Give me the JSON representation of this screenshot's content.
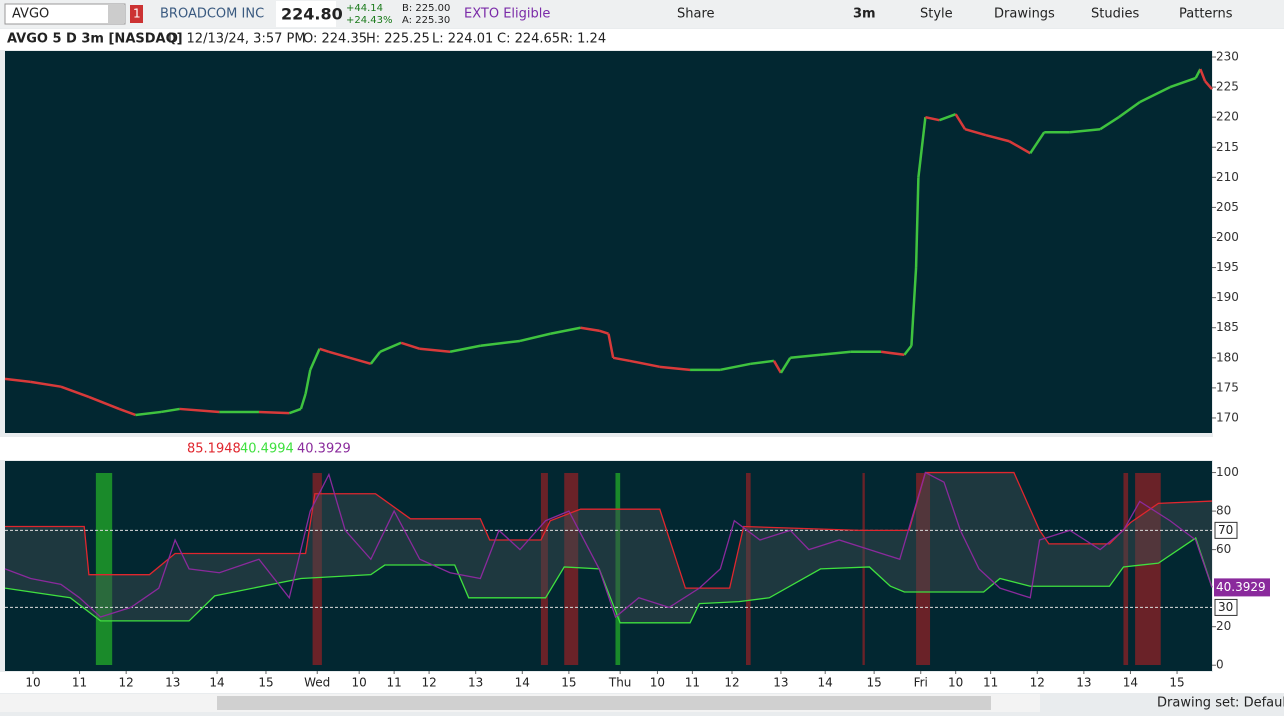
{
  "toolbar": {
    "symbol": "AVGO",
    "link": "1",
    "company": "BROADCOM INC",
    "last": "224.80",
    "change": "+44.14",
    "change_pct": "+24.43%",
    "bid": "B: 225.00",
    "ask": "A: 225.30",
    "exto": "EXTO Eligible",
    "buttons": [
      "Share",
      "3m",
      "Style",
      "Drawings",
      "Studies",
      "Patterns"
    ]
  },
  "chart_header": [
    "AVGO 5 D 3m [NASDAQ]",
    "D: 12/13/24, 3:57 PM",
    "O: 224.35",
    "H: 225.25",
    "L: 224.01",
    "C: 224.65",
    "R: 1.24"
  ],
  "chart_data": [
    {
      "type": "line",
      "background": "#022731",
      "up_color": "#3fc33f",
      "down_color": "#d83a3a",
      "x": [
        0,
        11,
        24,
        36,
        49,
        56,
        67,
        75,
        92,
        109,
        122,
        127,
        129,
        131,
        135,
        139,
        148,
        157,
        161,
        170,
        178,
        191,
        204,
        221,
        234,
        247,
        255,
        259,
        261,
        268,
        281,
        294,
        307,
        320,
        330,
        333,
        337,
        350,
        363,
        376,
        386,
        389,
        391,
        392,
        395,
        401,
        408,
        412,
        421,
        431,
        440,
        446,
        457,
        470,
        478,
        487,
        500,
        511,
        513,
        515,
        518
      ],
      "values": [
        176.5,
        176,
        175.2,
        173.5,
        171.5,
        170.5,
        171,
        171.5,
        171,
        171,
        170.8,
        171.5,
        174,
        178,
        181.5,
        181,
        180,
        179,
        181,
        182.5,
        181.5,
        181,
        182,
        182.8,
        184,
        185,
        184.5,
        184,
        180,
        179.5,
        178.5,
        178,
        178,
        179,
        179.5,
        177.5,
        180,
        180.5,
        181,
        181,
        180.5,
        182,
        195,
        210,
        220,
        219.5,
        220.5,
        218,
        217,
        216,
        214,
        217.5,
        217.5,
        218,
        220,
        222.5,
        225,
        226.5,
        228,
        226,
        224.65
      ],
      "xlim": [
        0,
        518
      ],
      "ylim": [
        167.5,
        231
      ],
      "yticks": [
        170,
        175,
        180,
        185,
        190,
        195,
        200,
        205,
        210,
        215,
        220,
        225,
        230
      ]
    },
    {
      "type": "line",
      "background": "#022731",
      "fill_color": "#3a4a4e",
      "series": [
        {
          "color": "#e0262e",
          "x": [
            0,
            34,
            36,
            62,
            73,
            129,
            133,
            159,
            174,
            204,
            208,
            230,
            234,
            247,
            281,
            292,
            311,
            317,
            367,
            388,
            395,
            433,
            444,
            448,
            474,
            483,
            495,
            518
          ],
          "values": [
            72,
            72,
            47,
            47,
            58,
            58,
            89,
            89,
            76,
            76,
            65,
            65,
            75,
            81,
            81,
            40,
            40,
            72,
            70,
            70,
            100,
            100,
            70,
            63,
            63,
            74,
            84,
            85.1948
          ]
        },
        {
          "color": "#3fe03f",
          "x": [
            0,
            28,
            41,
            79,
            90,
            127,
            157,
            163,
            193,
            199,
            232,
            240,
            255,
            264,
            294,
            298,
            315,
            328,
            350,
            371,
            380,
            386,
            420,
            427,
            440,
            474,
            480,
            495,
            511,
            518
          ],
          "values": [
            40,
            35,
            23,
            23,
            36,
            45,
            47,
            52,
            52,
            35,
            35,
            51,
            50,
            22,
            22,
            32,
            33,
            35,
            50,
            51,
            41,
            38,
            38,
            45,
            41,
            41,
            51,
            53,
            66,
            40.4994
          ]
        },
        {
          "color": "#8a2a9c",
          "x": [
            0,
            11,
            24,
            32,
            41,
            54,
            66,
            73,
            79,
            92,
            109,
            122,
            131,
            139,
            146,
            157,
            167,
            178,
            191,
            204,
            212,
            221,
            232,
            242,
            255,
            262,
            272,
            285,
            298,
            307,
            313,
            324,
            337,
            345,
            358,
            371,
            384,
            395,
            403,
            410,
            418,
            427,
            440,
            444,
            457,
            470,
            480,
            487,
            500,
            511,
            518
          ],
          "values": [
            50,
            45,
            42,
            35,
            25,
            30,
            40,
            65,
            50,
            48,
            55,
            35,
            80,
            99,
            70,
            55,
            80,
            55,
            48,
            45,
            70,
            60,
            75,
            80,
            50,
            25,
            35,
            30,
            40,
            50,
            75,
            65,
            70,
            60,
            65,
            60,
            55,
            100,
            95,
            70,
            50,
            40,
            35,
            65,
            70,
            60,
            70,
            85,
            75,
            65,
            40.3929
          ]
        }
      ],
      "bands": [
        {
          "start": 39,
          "end": 46,
          "color": "#1a8a2a"
        },
        {
          "start": 132,
          "end": 136,
          "color": "#6a2228"
        },
        {
          "start": 230,
          "end": 233,
          "color": "#6a2228"
        },
        {
          "start": 240,
          "end": 246,
          "color": "#6a2228"
        },
        {
          "start": 262,
          "end": 264,
          "color": "#1a8a2a"
        },
        {
          "start": 318,
          "end": 320,
          "color": "#6a2228"
        },
        {
          "start": 368,
          "end": 369,
          "color": "#6a2228"
        },
        {
          "start": 391,
          "end": 397,
          "color": "#6a2228"
        },
        {
          "start": 480,
          "end": 482,
          "color": "#6a2228"
        },
        {
          "start": 485,
          "end": 496,
          "color": "#6a2228"
        }
      ],
      "levels": [
        70,
        30
      ],
      "xlim": [
        0,
        518
      ],
      "ylim": [
        -3,
        106
      ],
      "yticks": [
        0,
        20,
        60,
        80,
        100
      ],
      "xticks": [
        {
          "value": 12,
          "label": "10"
        },
        {
          "value": 32,
          "label": "11"
        },
        {
          "value": 52,
          "label": "12"
        },
        {
          "value": 72,
          "label": "13"
        },
        {
          "value": 91,
          "label": "14"
        },
        {
          "value": 112,
          "label": "15"
        },
        {
          "value": 134,
          "label": "Wed"
        },
        {
          "value": 152,
          "label": "10"
        },
        {
          "value": 167,
          "label": "11"
        },
        {
          "value": 182,
          "label": "12"
        },
        {
          "value": 202,
          "label": "13"
        },
        {
          "value": 222,
          "label": "14"
        },
        {
          "value": 242,
          "label": "15"
        },
        {
          "value": 264,
          "label": "Thu"
        },
        {
          "value": 280,
          "label": "10"
        },
        {
          "value": 295,
          "label": "11"
        },
        {
          "value": 312,
          "label": "12"
        },
        {
          "value": 333,
          "label": "13"
        },
        {
          "value": 352,
          "label": "14"
        },
        {
          "value": 373,
          "label": "15"
        },
        {
          "value": 393,
          "label": "Fri"
        },
        {
          "value": 408,
          "label": "10"
        },
        {
          "value": 423,
          "label": "11"
        },
        {
          "value": 443,
          "label": "12"
        },
        {
          "value": 463,
          "label": "13"
        },
        {
          "value": 483,
          "label": "14"
        },
        {
          "value": 503,
          "label": "15"
        }
      ]
    }
  ],
  "footer": {
    "drawing_set": "Drawing set: Default"
  }
}
